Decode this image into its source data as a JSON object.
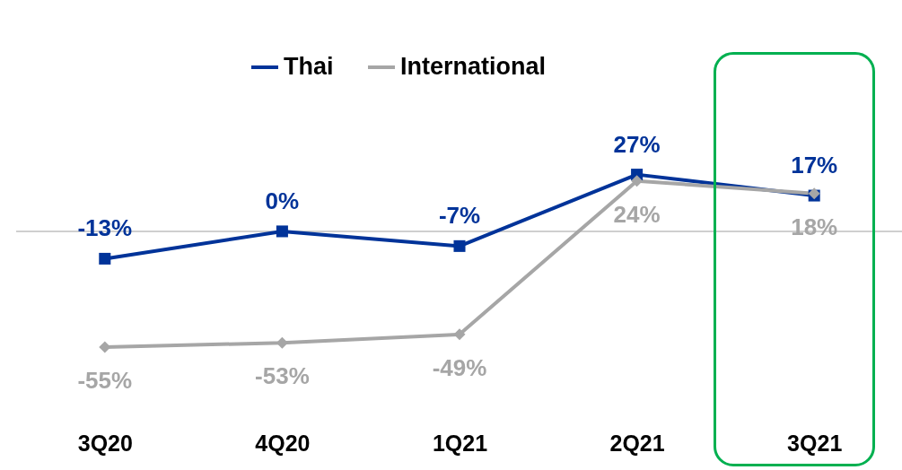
{
  "chart_data": {
    "type": "line",
    "categories": [
      "3Q20",
      "4Q20",
      "1Q21",
      "2Q21",
      "3Q21"
    ],
    "legend": "top",
    "tick_labels": "x",
    "series": [
      {
        "name": "Thai",
        "color": "#003399",
        "marker": "square",
        "values": [
          -13,
          0,
          -7,
          27,
          17
        ],
        "value_labels": [
          "-13%",
          "0%",
          "-7%",
          "27%",
          "17%"
        ]
      },
      {
        "name": "International",
        "color": "#a6a6a6",
        "marker": "diamond",
        "values": [
          -55,
          -53,
          -49,
          24,
          18
        ],
        "value_labels": [
          "-55%",
          "-53%",
          "-49%",
          "24%",
          "18%"
        ]
      }
    ]
  }
}
